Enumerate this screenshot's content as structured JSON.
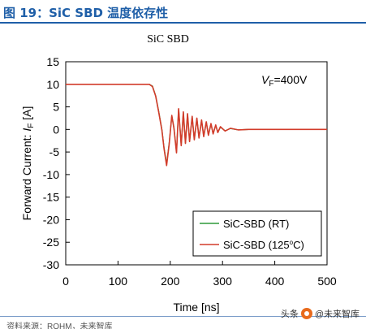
{
  "figure_label": "图 19：SiC SBD 温度依存性",
  "source_fragment": "资料来源：ROHM，未来智库",
  "watermark": {
    "prefix": "头条",
    "handle": "@未来智库"
  },
  "colors": {
    "rt": "#2e9a3a",
    "hot": "#d23b2a",
    "header": "#1f5fa8"
  },
  "chart_data": {
    "type": "line",
    "title": "SiC SBD",
    "xlabel": "Time [ns]",
    "ylabel": "Forward Current: I_F [A]",
    "ylabel_parts": {
      "prefix": "Forward Current: ",
      "symbol": "I",
      "subscript": "F",
      "suffix": " [A]"
    },
    "xlim": [
      0,
      500
    ],
    "ylim": [
      -30,
      15
    ],
    "xticks": [
      0,
      100,
      200,
      300,
      400,
      500
    ],
    "yticks": [
      15,
      10,
      5,
      0,
      -5,
      -10,
      -15,
      -20,
      -25,
      -30
    ],
    "annotation": {
      "symbol": "V",
      "subscript": "F",
      "rest": "=400V"
    },
    "legend": {
      "position": "bottom-right"
    },
    "grid": false,
    "series": [
      {
        "name": "SiC-SBD (RT)",
        "legend_label": "SiC-SBD (RT)",
        "color": "#2e9a3a",
        "x": [
          0,
          160,
          166,
          172,
          178,
          184,
          188,
          193,
          198,
          203,
          207,
          212,
          216,
          221,
          225,
          229,
          233,
          237,
          242,
          246,
          251,
          255,
          260,
          264,
          269,
          273,
          278,
          282,
          287,
          291,
          296,
          305,
          315,
          330,
          350,
          380,
          420,
          460,
          500
        ],
        "y": [
          10,
          10,
          9.6,
          7.5,
          4,
          0,
          -4,
          -7.6,
          -3,
          3,
          0.5,
          -5,
          4.5,
          -3.5,
          3.8,
          -3,
          3.4,
          -2.6,
          2.8,
          -2.2,
          2.4,
          -1.8,
          2,
          -1.5,
          1.6,
          -1.2,
          1.2,
          -0.9,
          0.9,
          -0.6,
          0.5,
          -0.3,
          0.2,
          -0.1,
          0,
          0,
          0,
          0,
          0
        ]
      },
      {
        "name": "SiC-SBD (125°C)",
        "legend_label": "SiC-SBD (125",
        "legend_sup": "o",
        "legend_tail": "C)",
        "color": "#d23b2a",
        "x": [
          0,
          160,
          166,
          172,
          178,
          184,
          188,
          193,
          198,
          203,
          207,
          212,
          216,
          221,
          225,
          229,
          233,
          237,
          242,
          246,
          251,
          255,
          260,
          264,
          269,
          273,
          278,
          282,
          287,
          291,
          296,
          305,
          315,
          330,
          350,
          380,
          420,
          460,
          500
        ],
        "y": [
          10,
          10,
          9.5,
          7.4,
          3.8,
          -0.2,
          -4.2,
          -8,
          -3.2,
          3.1,
          0.3,
          -5.2,
          4.6,
          -3.6,
          3.9,
          -3.1,
          3.5,
          -2.7,
          2.9,
          -2.3,
          2.5,
          -1.9,
          2.1,
          -1.6,
          1.7,
          -1.3,
          1.3,
          -1,
          1,
          -0.7,
          0.6,
          -0.35,
          0.25,
          -0.1,
          0,
          0,
          0,
          0,
          0
        ]
      }
    ]
  }
}
